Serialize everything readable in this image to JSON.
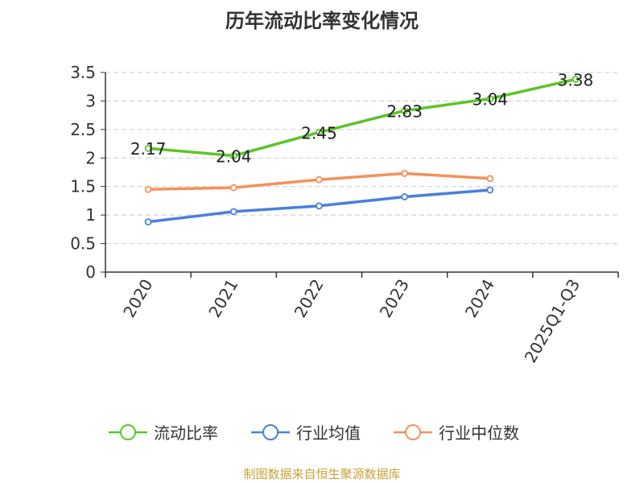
{
  "colors": {
    "ratio": "#5cc529",
    "industry_avg": "#4a7fdc",
    "industry_median": "#f5905a",
    "axis": "#333333",
    "grid": "#cccccc"
  },
  "source": "制图数据来自恒生聚源数据库",
  "chart_data": {
    "type": "line",
    "title": "历年流动比率变化情况",
    "categories": [
      "2020",
      "2021",
      "2022",
      "2023",
      "2024",
      "2025Q1-Q3"
    ],
    "ylim": [
      0,
      3.5
    ],
    "yticks": [
      "0",
      "0.5",
      "1",
      "1.5",
      "2",
      "2.5",
      "3",
      "3.5"
    ],
    "grid": true,
    "legend_position": "bottom",
    "series": [
      {
        "name": "流动比率",
        "values": [
          2.17,
          2.04,
          2.45,
          2.83,
          3.04,
          3.38
        ],
        "labels": [
          "2.17",
          "2.04",
          "2.45",
          "2.83",
          "3.04",
          "3.38"
        ],
        "color": "#5cc529"
      },
      {
        "name": "行业均值",
        "values": [
          0.88,
          1.06,
          1.16,
          1.32,
          1.44,
          null
        ],
        "color": "#4a7fdc"
      },
      {
        "name": "行业中位数",
        "values": [
          1.45,
          1.48,
          1.62,
          1.73,
          1.64,
          null
        ],
        "color": "#f5905a"
      }
    ]
  }
}
